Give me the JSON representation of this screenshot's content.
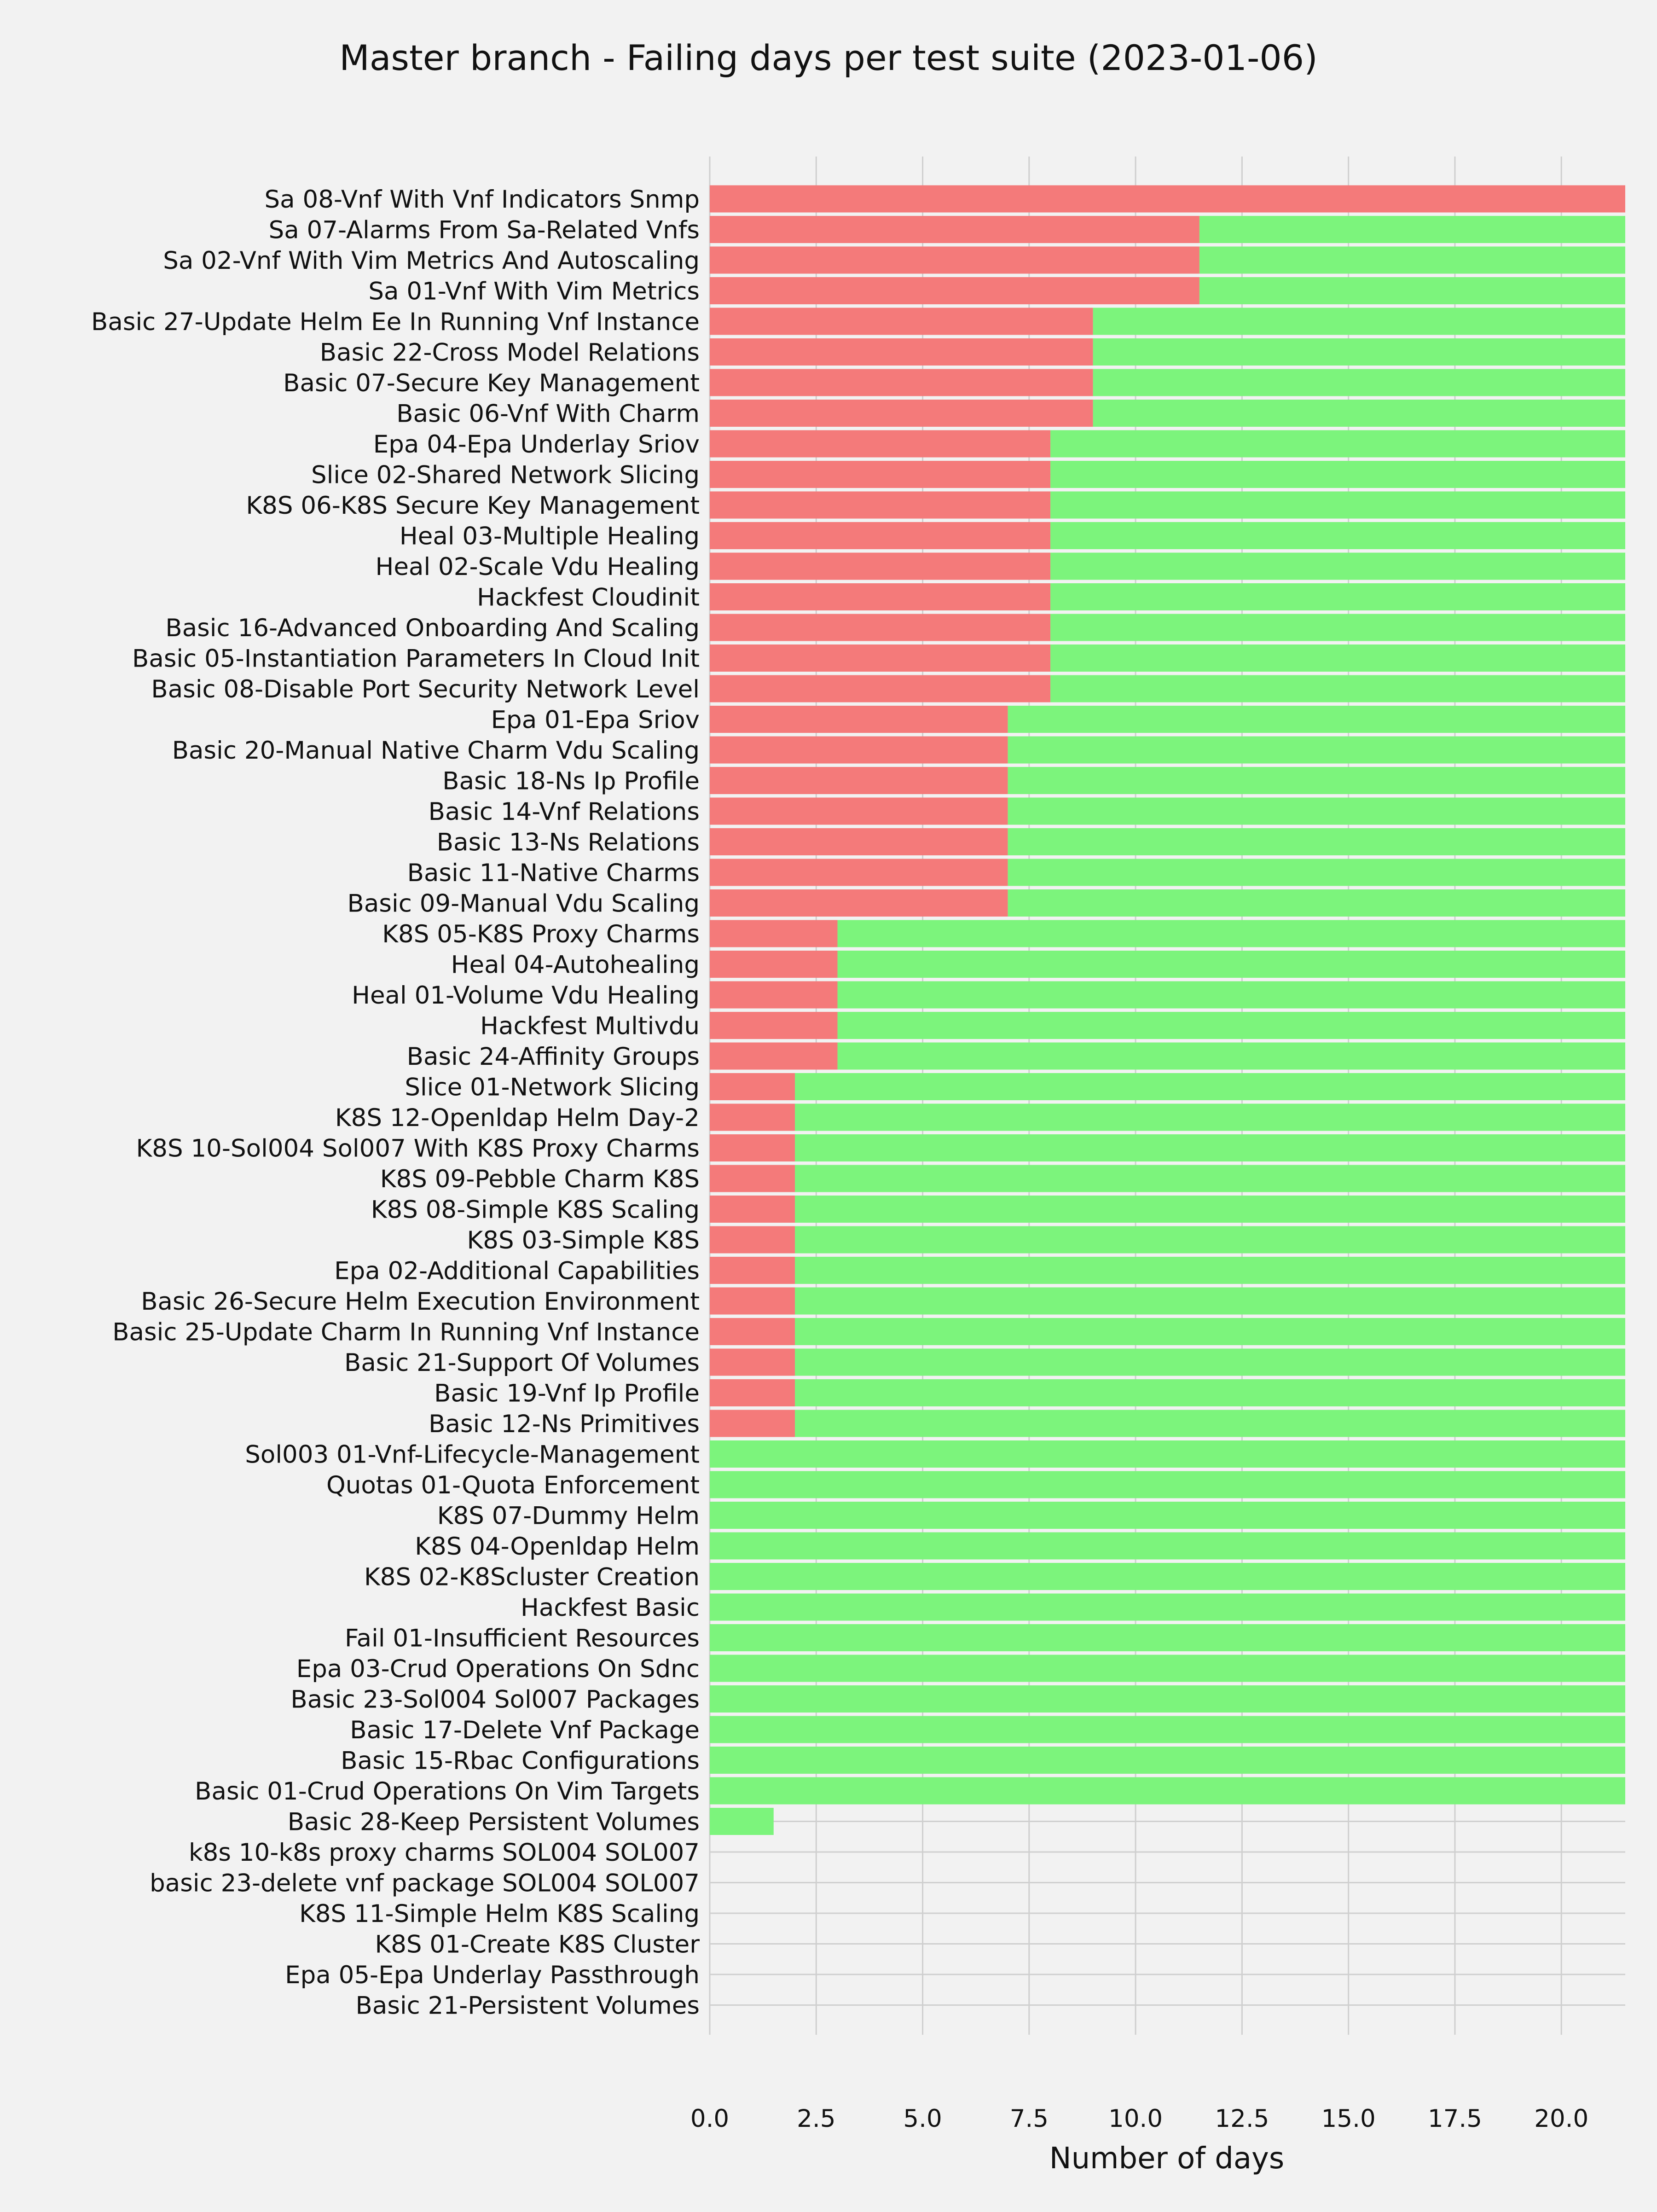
{
  "chart_data": {
    "type": "bar",
    "orientation": "horizontal",
    "stacked": true,
    "title": "Master branch - Failing days per test suite (2023-01-06)",
    "xlabel": "Number of days",
    "ylabel": "",
    "xlim": [
      0,
      21.5
    ],
    "x_ticks": [
      "0.0",
      "2.5",
      "5.0",
      "7.5",
      "10.0",
      "12.5",
      "15.0",
      "17.5",
      "20.0"
    ],
    "grid": true,
    "colors": {
      "failing": "#f47a7a",
      "passing": "#7cf47c",
      "background": "#f2f2f2",
      "grid": "#cfcfcf"
    },
    "categories": [
      "Sa 08-Vnf With Vnf Indicators Snmp",
      "Sa 07-Alarms From Sa-Related Vnfs",
      "Sa 02-Vnf With Vim Metrics And Autoscaling",
      "Sa 01-Vnf With Vim Metrics",
      "Basic 27-Update Helm Ee In Running Vnf Instance",
      "Basic 22-Cross Model Relations",
      "Basic 07-Secure Key Management",
      "Basic 06-Vnf With Charm",
      "Epa 04-Epa Underlay Sriov",
      "Slice 02-Shared Network Slicing",
      "K8S 06-K8S Secure Key Management",
      "Heal 03-Multiple Healing",
      "Heal 02-Scale Vdu Healing",
      "Hackfest Cloudinit",
      "Basic 16-Advanced Onboarding And Scaling",
      "Basic 05-Instantiation Parameters In Cloud Init",
      "Basic 08-Disable Port Security Network Level",
      "Epa 01-Epa Sriov",
      "Basic 20-Manual Native Charm Vdu Scaling",
      "Basic 18-Ns Ip Profile",
      "Basic 14-Vnf Relations",
      "Basic 13-Ns Relations",
      "Basic 11-Native Charms",
      "Basic 09-Manual Vdu Scaling",
      "K8S 05-K8S Proxy Charms",
      "Heal 04-Autohealing",
      "Heal 01-Volume Vdu Healing",
      "Hackfest Multivdu",
      "Basic 24-Affinity Groups",
      "Slice 01-Network Slicing",
      "K8S 12-Openldap Helm Day-2",
      "K8S 10-Sol004 Sol007 With K8S Proxy Charms",
      "K8S 09-Pebble Charm K8S",
      "K8S 08-Simple K8S Scaling",
      "K8S 03-Simple K8S",
      "Epa 02-Additional Capabilities",
      "Basic 26-Secure Helm Execution Environment",
      "Basic 25-Update Charm In Running Vnf Instance",
      "Basic 21-Support Of Volumes",
      "Basic 19-Vnf Ip Profile",
      "Basic 12-Ns Primitives",
      "Sol003 01-Vnf-Lifecycle-Management",
      "Quotas 01-Quota Enforcement",
      "K8S 07-Dummy Helm",
      "K8S 04-Openldap Helm",
      "K8S 02-K8Scluster Creation",
      "Hackfest Basic",
      "Fail 01-Insufficient Resources",
      "Epa 03-Crud Operations On Sdnc",
      "Basic 23-Sol004 Sol007 Packages",
      "Basic 17-Delete Vnf Package",
      "Basic 15-Rbac Configurations",
      "Basic 01-Crud Operations On Vim Targets",
      "Basic 28-Keep Persistent Volumes",
      "k8s 10-k8s proxy charms SOL004 SOL007",
      "basic 23-delete vnf package SOL004 SOL007",
      "K8S 11-Simple Helm K8S Scaling",
      "K8S 01-Create K8S Cluster",
      "Epa 05-Epa Underlay Passthrough",
      "Basic 21-Persistent Volumes"
    ],
    "series": [
      {
        "key": "failing",
        "values": [
          21.5,
          11.5,
          11.5,
          11.5,
          9,
          9,
          9,
          9,
          8,
          8,
          8,
          8,
          8,
          8,
          8,
          8,
          8,
          7,
          7,
          7,
          7,
          7,
          7,
          7,
          3,
          3,
          3,
          3,
          3,
          2,
          2,
          2,
          2,
          2,
          2,
          2,
          2,
          2,
          2,
          2,
          2,
          0,
          0,
          0,
          0,
          0,
          0,
          0,
          0,
          0,
          0,
          0,
          0,
          0,
          0,
          0,
          0,
          0,
          0,
          0
        ]
      },
      {
        "key": "passing",
        "values": [
          0,
          10,
          10,
          10,
          12.5,
          12.5,
          12.5,
          12.5,
          13.5,
          13.5,
          13.5,
          13.5,
          13.5,
          13.5,
          13.5,
          13.5,
          13.5,
          14.5,
          14.5,
          14.5,
          14.5,
          14.5,
          14.5,
          14.5,
          18.5,
          18.5,
          18.5,
          18.5,
          18.5,
          19.5,
          19.5,
          19.5,
          19.5,
          19.5,
          19.5,
          19.5,
          19.5,
          19.5,
          19.5,
          19.5,
          19.5,
          21.5,
          21.5,
          21.5,
          21.5,
          21.5,
          21.5,
          21.5,
          21.5,
          21.5,
          21.5,
          21.5,
          21.5,
          1.5,
          0,
          0,
          0,
          0,
          0,
          0
        ]
      }
    ]
  }
}
